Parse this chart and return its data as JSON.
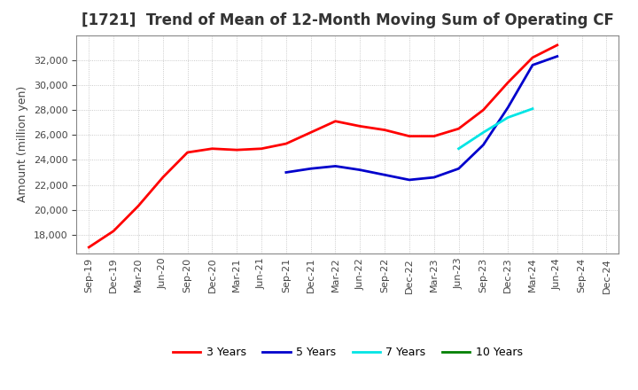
{
  "title": "[1721]  Trend of Mean of 12-Month Moving Sum of Operating CF",
  "ylabel": "Amount (million yen)",
  "ylim": [
    16500,
    34000
  ],
  "yticks": [
    18000,
    20000,
    22000,
    24000,
    26000,
    28000,
    30000,
    32000
  ],
  "x_labels": [
    "Sep-19",
    "Dec-19",
    "Mar-20",
    "Jun-20",
    "Sep-20",
    "Dec-20",
    "Mar-21",
    "Jun-21",
    "Sep-21",
    "Dec-21",
    "Mar-22",
    "Jun-22",
    "Sep-22",
    "Dec-22",
    "Mar-23",
    "Jun-23",
    "Sep-23",
    "Dec-23",
    "Mar-24",
    "Jun-24",
    "Sep-24",
    "Dec-24"
  ],
  "series_3y": {
    "label": "3 Years",
    "color": "#ff0000",
    "values": [
      17000,
      18300,
      20300,
      22600,
      24600,
      24900,
      24800,
      24900,
      25300,
      26200,
      27100,
      26700,
      26400,
      25900,
      25900,
      26500,
      28000,
      30200,
      32200,
      33200,
      null,
      null
    ]
  },
  "series_5y": {
    "label": "5 Years",
    "color": "#0000cc",
    "values": [
      null,
      null,
      null,
      null,
      null,
      null,
      null,
      null,
      23000,
      23300,
      23500,
      23200,
      22800,
      22400,
      22600,
      23300,
      25200,
      28200,
      31600,
      32300,
      null,
      null
    ]
  },
  "series_7y": {
    "label": "7 Years",
    "color": "#00e5e5",
    "values": [
      null,
      null,
      null,
      null,
      null,
      null,
      null,
      null,
      null,
      null,
      null,
      null,
      null,
      null,
      null,
      24900,
      26200,
      27400,
      28100,
      null,
      null,
      null
    ]
  },
  "series_10y": {
    "label": "10 Years",
    "color": "#008000",
    "values": []
  },
  "background_color": "#ffffff",
  "grid_color": "#bbbbbb",
  "title_fontsize": 12,
  "axis_label_fontsize": 9,
  "tick_fontsize": 8,
  "legend_fontsize": 9,
  "linewidth": 2.0
}
